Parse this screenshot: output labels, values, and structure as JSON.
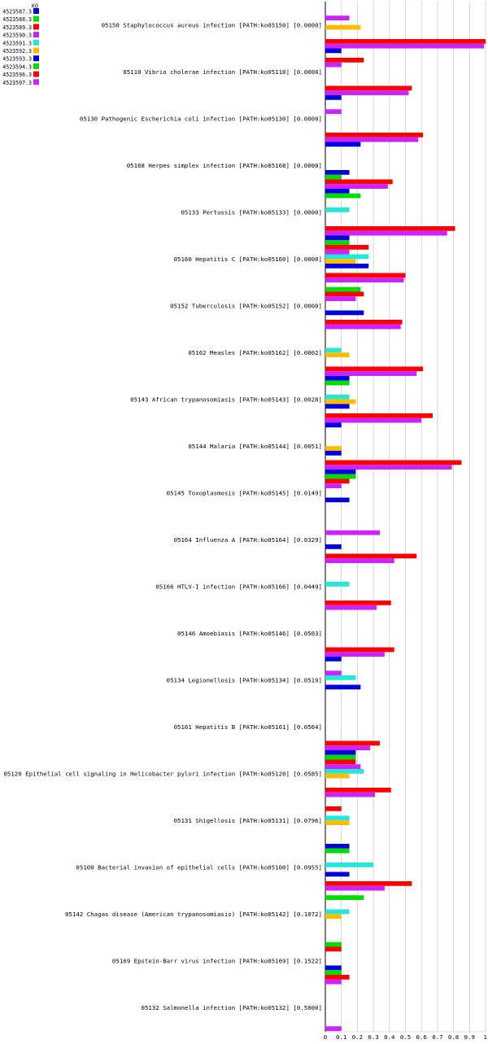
{
  "chart_data": {
    "type": "bar",
    "orientation": "horizontal",
    "xlim": [
      0,
      1
    ],
    "x_ticks": [
      "0",
      "0.1",
      "0.2",
      "0.3",
      "0.4",
      "0.5",
      "0.6",
      "0.7",
      "0.8",
      "0.9",
      "1"
    ],
    "grid": true,
    "legend_position": "top-left",
    "legend_title": "KO",
    "series": [
      {
        "name": "4523587.3",
        "color": "#0000e0"
      },
      {
        "name": "4523588.3",
        "color": "#00dd00"
      },
      {
        "name": "4523589.3",
        "color": "#ff0000"
      },
      {
        "name": "4523590.3",
        "color": "#cc22ff"
      },
      {
        "name": "4523591.3",
        "color": "#22e8d8"
      },
      {
        "name": "4523592.3",
        "color": "#ffbb00"
      },
      {
        "name": "4523593.3",
        "color": "#0000e0"
      },
      {
        "name": "4523594.3",
        "color": "#00dd00"
      },
      {
        "name": "4523596.3",
        "color": "#ff0000"
      },
      {
        "name": "4523597.3",
        "color": "#cc22ff"
      }
    ],
    "categories": [
      "05150 Staphylococcus aureus infection [PATH:ko05150] [0.0000]",
      "05110 Vibrio cholerae infection [PATH:ko05110] [0.0000]",
      "05130 Pathogenic Escherichia coli infection [PATH:ko05130] [0.0000]",
      "05168 Herpes simplex infection [PATH:ko05168] [0.0000]",
      "05133 Pertussis [PATH:ko05133] [0.0000]",
      "05160 Hepatitis C [PATH:ko05160] [0.0000]",
      "05152 Tuberculosis [PATH:ko05152] [0.0000]",
      "05162 Measles [PATH:ko05162] [0.0002]",
      "05143 African trypanosomiasis [PATH:ko05143] [0.0028]",
      "05144 Malaria [PATH:ko05144] [0.0051]",
      "05145 Toxoplasmosis [PATH:ko05145] [0.0149]",
      "05164 Influenza A [PATH:ko05164] [0.0329]",
      "05166 HTLV-I infection [PATH:ko05166] [0.0449]",
      "05146 Amoebiasis [PATH:ko05146] [0.0503]",
      "05134 Legionellosis [PATH:ko05134] [0.0519]",
      "05161 Hepatitis B [PATH:ko05161] [0.0564]",
      "05120 Epithelial cell signaling in Helicobacter pylori infection [PATH:ko05120] [0.0585]",
      "05131 Shigellosis [PATH:ko05131] [0.0796]",
      "05100 Bacterial invasion of epithelial cells [PATH:ko05100] [0.0955]",
      "05142 Chagas disease (American trypanosomiasis) [PATH:ko05142] [0.1072]",
      "05169 Epstein-Barr virus infection [PATH:ko05169] [0.1522]",
      "05132 Salmonella infection [PATH:ko05132] [0.5000]"
    ],
    "values": [
      [
        0,
        0,
        0,
        0.15,
        0,
        0.22,
        0,
        0,
        1.0,
        0.99
      ],
      [
        0.1,
        0,
        0.24,
        0.1,
        0,
        0,
        0,
        0,
        0.54,
        0.52
      ],
      [
        0.1,
        0,
        0,
        0.1,
        0,
        0,
        0,
        0,
        0.61,
        0.58
      ],
      [
        0.22,
        0,
        0,
        0,
        0,
        0,
        0.15,
        0.1,
        0.42,
        0.39
      ],
      [
        0.15,
        0.22,
        0,
        0,
        0.15,
        0,
        0,
        0,
        0.81,
        0.76
      ],
      [
        0.15,
        0.15,
        0.27,
        0.15,
        0.27,
        0.19,
        0.27,
        0,
        0.5,
        0.49
      ],
      [
        0,
        0.22,
        0.24,
        0.19,
        0,
        0,
        0.24,
        0,
        0.48,
        0.47
      ],
      [
        0,
        0,
        0,
        0,
        0.1,
        0.15,
        0,
        0,
        0.61,
        0.57
      ],
      [
        0.15,
        0.15,
        0,
        0,
        0.15,
        0.19,
        0.15,
        0,
        0.67,
        0.6
      ],
      [
        0.1,
        0,
        0,
        0,
        0,
        0.1,
        0.1,
        0,
        0.85,
        0.79
      ],
      [
        0.19,
        0.19,
        0.15,
        0.1,
        0,
        0,
        0.15,
        0,
        0,
        0
      ],
      [
        0,
        0,
        0,
        0.34,
        0,
        0,
        0.1,
        0,
        0.57,
        0.43
      ],
      [
        0,
        0,
        0,
        0,
        0.15,
        0,
        0,
        0,
        0.41,
        0.32
      ],
      [
        0,
        0,
        0,
        0,
        0,
        0,
        0,
        0,
        0.43,
        0.37
      ],
      [
        0.1,
        0,
        0,
        0.1,
        0.19,
        0,
        0.22,
        0,
        0,
        0
      ],
      [
        0,
        0,
        0,
        0,
        0,
        0,
        0,
        0,
        0.34,
        0.28
      ],
      [
        0.19,
        0.19,
        0.19,
        0.22,
        0.24,
        0.15,
        0,
        0,
        0.41,
        0.31
      ],
      [
        0,
        0,
        0.1,
        0,
        0.15,
        0.15,
        0,
        0,
        0,
        0
      ],
      [
        0.15,
        0.15,
        0,
        0,
        0.3,
        0,
        0.15,
        0,
        0.54,
        0.37
      ],
      [
        0,
        0.24,
        0,
        0,
        0.15,
        0.1,
        0,
        0,
        0,
        0
      ],
      [
        0,
        0.1,
        0.1,
        0,
        0,
        0,
        0.1,
        0.1,
        0.15,
        0.1
      ],
      [
        0,
        0,
        0,
        0,
        0,
        0,
        0,
        0,
        0,
        0.1
      ]
    ]
  }
}
